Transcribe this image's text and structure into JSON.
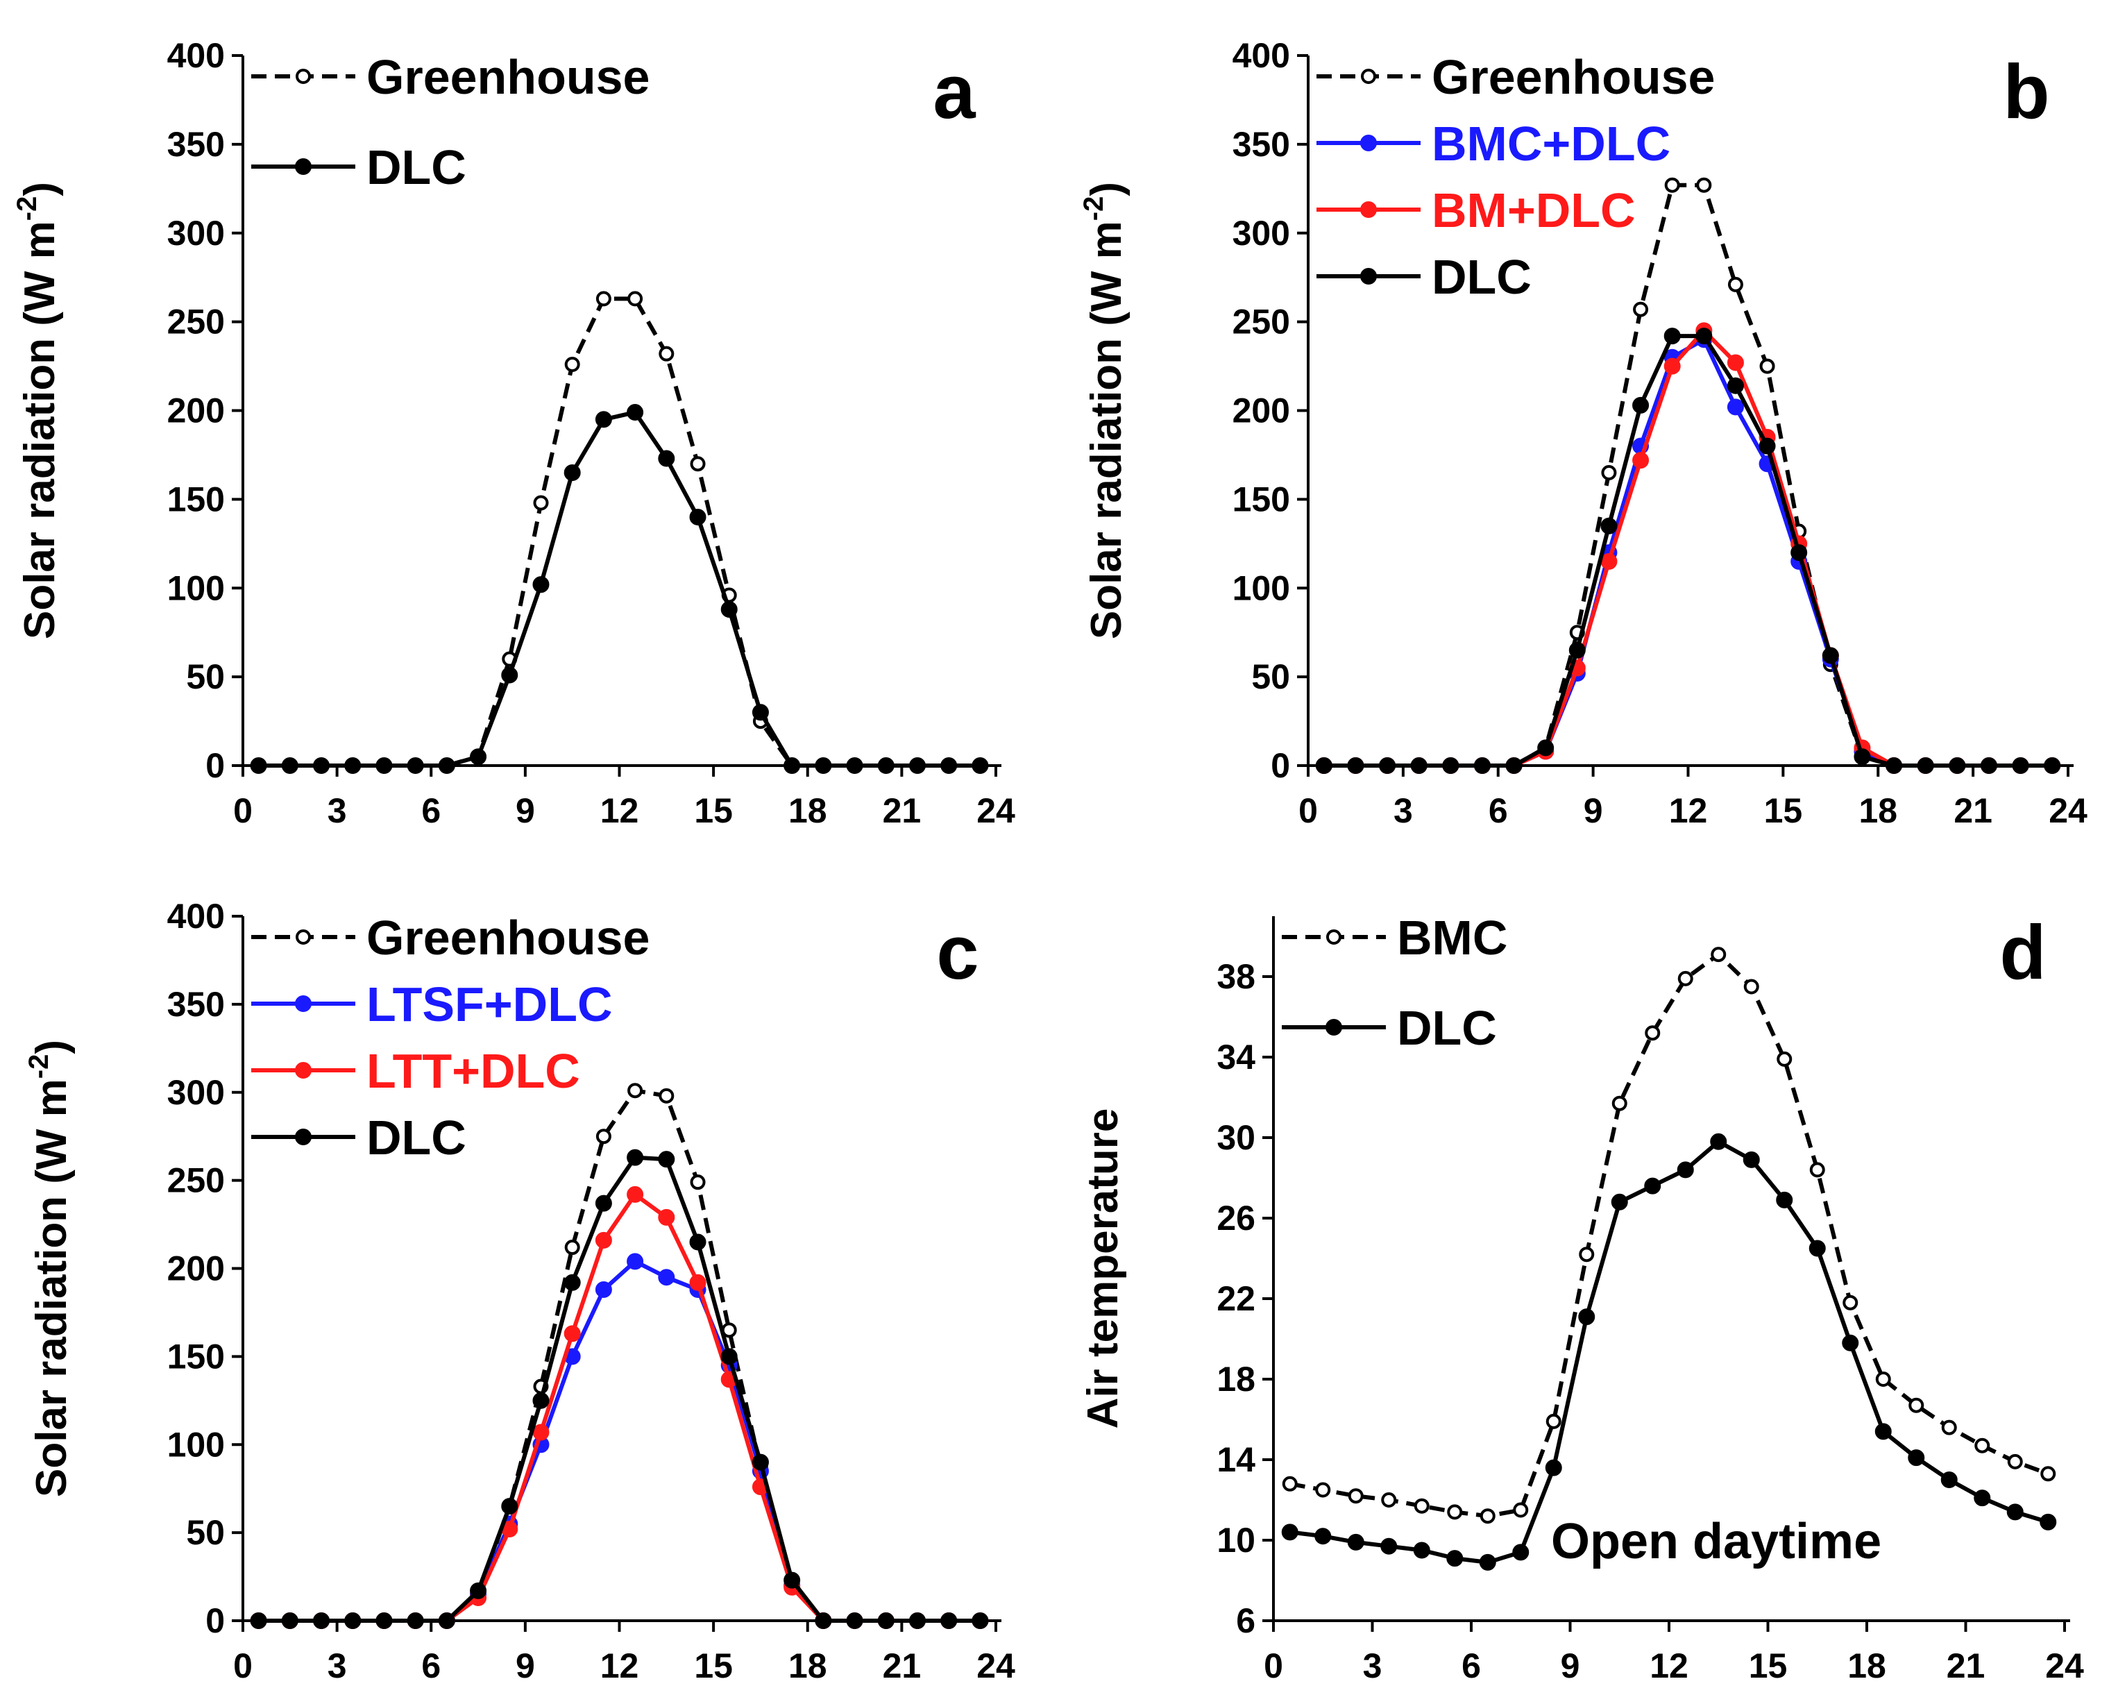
{
  "chart_data": [
    {
      "type": "line",
      "panel": "a",
      "ylabel_main": "Solar radiation (W m",
      "ylabel_sup": "-2",
      "ylabel_tail": ")",
      "xlim": [
        0,
        24
      ],
      "ylim": [
        0,
        400
      ],
      "xticks": [
        "0",
        "3",
        "6",
        "9",
        "12",
        "15",
        "18",
        "21",
        "24"
      ],
      "yticks": [
        "0",
        "50",
        "100",
        "150",
        "200",
        "250",
        "300",
        "350",
        "400"
      ],
      "legend_position": "top-left",
      "series": [
        {
          "name": "Greenhouse",
          "color": "#000000",
          "style": "dashed",
          "marker": "open",
          "x": [
            0.5,
            1.5,
            2.5,
            3.5,
            4.5,
            5.5,
            6.5,
            7.5,
            8.5,
            9.5,
            10.5,
            11.5,
            12.5,
            13.5,
            14.5,
            15.5,
            16.5,
            17.5,
            18.5,
            19.5,
            20.5,
            21.5,
            22.5,
            23.5
          ],
          "values": [
            0,
            0,
            0,
            0,
            0,
            0,
            0,
            5,
            60,
            148,
            226,
            263,
            263,
            232,
            170,
            96,
            25,
            0,
            0,
            0,
            0,
            0,
            0,
            0
          ]
        },
        {
          "name": "DLC",
          "color": "#000000",
          "style": "solid",
          "marker": "filled",
          "x": [
            0.5,
            1.5,
            2.5,
            3.5,
            4.5,
            5.5,
            6.5,
            7.5,
            8.5,
            9.5,
            10.5,
            11.5,
            12.5,
            13.5,
            14.5,
            15.5,
            16.5,
            17.5,
            18.5,
            19.5,
            20.5,
            21.5,
            22.5,
            23.5
          ],
          "values": [
            0,
            0,
            0,
            0,
            0,
            0,
            0,
            5,
            51,
            102,
            165,
            195,
            199,
            173,
            140,
            88,
            30,
            0,
            0,
            0,
            0,
            0,
            0,
            0
          ]
        }
      ]
    },
    {
      "type": "line",
      "panel": "b",
      "ylabel_main": "Solar radiation (W m",
      "ylabel_sup": "-2",
      "ylabel_tail": ")",
      "xlim": [
        0,
        24
      ],
      "ylim": [
        0,
        400
      ],
      "xticks": [
        "0",
        "3",
        "6",
        "9",
        "12",
        "15",
        "18",
        "21",
        "24"
      ],
      "yticks": [
        "0",
        "50",
        "100",
        "150",
        "200",
        "250",
        "300",
        "350",
        "400"
      ],
      "legend_position": "top-left",
      "series": [
        {
          "name": "Greenhouse",
          "color": "#000000",
          "style": "dashed",
          "marker": "open",
          "x": [
            0.5,
            1.5,
            2.5,
            3.5,
            4.5,
            5.5,
            6.5,
            7.5,
            8.5,
            9.5,
            10.5,
            11.5,
            12.5,
            13.5,
            14.5,
            15.5,
            16.5,
            17.5,
            18.5,
            19.5,
            20.5,
            21.5,
            22.5,
            23.5
          ],
          "values": [
            0,
            0,
            0,
            0,
            0,
            0,
            0,
            10,
            75,
            165,
            257,
            327,
            327,
            271,
            225,
            132,
            57,
            5,
            0,
            0,
            0,
            0,
            0,
            0
          ]
        },
        {
          "name": "BMC+DLC",
          "color": "#1a1aff",
          "style": "solid",
          "marker": "filled",
          "x": [
            0.5,
            1.5,
            2.5,
            3.5,
            4.5,
            5.5,
            6.5,
            7.5,
            8.5,
            9.5,
            10.5,
            11.5,
            12.5,
            13.5,
            14.5,
            15.5,
            16.5,
            17.5,
            18.5,
            19.5,
            20.5,
            21.5,
            22.5,
            23.5
          ],
          "values": [
            0,
            0,
            0,
            0,
            0,
            0,
            0,
            8,
            52,
            120,
            180,
            230,
            240,
            202,
            170,
            115,
            60,
            8,
            0,
            0,
            0,
            0,
            0,
            0
          ]
        },
        {
          "name": "BM+DLC",
          "color": "#ff1a1a",
          "style": "solid",
          "marker": "filled",
          "x": [
            0.5,
            1.5,
            2.5,
            3.5,
            4.5,
            5.5,
            6.5,
            7.5,
            8.5,
            9.5,
            10.5,
            11.5,
            12.5,
            13.5,
            14.5,
            15.5,
            16.5,
            17.5,
            18.5,
            19.5,
            20.5,
            21.5,
            22.5,
            23.5
          ],
          "values": [
            0,
            0,
            0,
            0,
            0,
            0,
            0,
            8,
            55,
            115,
            172,
            225,
            245,
            227,
            185,
            125,
            62,
            10,
            0,
            0,
            0,
            0,
            0,
            0
          ]
        },
        {
          "name": "DLC",
          "color": "#000000",
          "style": "solid",
          "marker": "filled",
          "x": [
            0.5,
            1.5,
            2.5,
            3.5,
            4.5,
            5.5,
            6.5,
            7.5,
            8.5,
            9.5,
            10.5,
            11.5,
            12.5,
            13.5,
            14.5,
            15.5,
            16.5,
            17.5,
            18.5,
            19.5,
            20.5,
            21.5,
            22.5,
            23.5
          ],
          "values": [
            0,
            0,
            0,
            0,
            0,
            0,
            0,
            10,
            65,
            135,
            203,
            242,
            242,
            214,
            180,
            120,
            62,
            5,
            0,
            0,
            0,
            0,
            0,
            0
          ]
        }
      ]
    },
    {
      "type": "line",
      "panel": "c",
      "ylabel_main": "Solar radiation (W m",
      "ylabel_sup": "-2",
      "ylabel_tail": ")",
      "xlim": [
        0,
        24
      ],
      "ylim": [
        0,
        400
      ],
      "xticks": [
        "0",
        "3",
        "6",
        "9",
        "12",
        "15",
        "18",
        "21",
        "24"
      ],
      "yticks": [
        "0",
        "50",
        "100",
        "150",
        "200",
        "250",
        "300",
        "350",
        "400"
      ],
      "legend_position": "top-left",
      "series": [
        {
          "name": "Greenhouse",
          "color": "#000000",
          "style": "dashed",
          "marker": "open",
          "x": [
            0.5,
            1.5,
            2.5,
            3.5,
            4.5,
            5.5,
            6.5,
            7.5,
            8.5,
            9.5,
            10.5,
            11.5,
            12.5,
            13.5,
            14.5,
            15.5,
            16.5,
            17.5,
            18.5,
            19.5,
            20.5,
            21.5,
            22.5,
            23.5
          ],
          "values": [
            0,
            0,
            0,
            0,
            0,
            0,
            0,
            15,
            65,
            133,
            212,
            275,
            301,
            298,
            249,
            165,
            87,
            20,
            0,
            0,
            0,
            0,
            0,
            0
          ]
        },
        {
          "name": "LTSF+DLC",
          "color": "#1a1aff",
          "style": "solid",
          "marker": "filled",
          "x": [
            0.5,
            1.5,
            2.5,
            3.5,
            4.5,
            5.5,
            6.5,
            7.5,
            8.5,
            9.5,
            10.5,
            11.5,
            12.5,
            13.5,
            14.5,
            15.5,
            16.5,
            17.5,
            18.5,
            19.5,
            20.5,
            21.5,
            22.5,
            23.5
          ],
          "values": [
            0,
            0,
            0,
            0,
            0,
            0,
            0,
            15,
            55,
            100,
            150,
            188,
            204,
            195,
            188,
            145,
            85,
            20,
            0,
            0,
            0,
            0,
            0,
            0
          ]
        },
        {
          "name": "LTT+DLC",
          "color": "#ff1a1a",
          "style": "solid",
          "marker": "filled",
          "x": [
            0.5,
            1.5,
            2.5,
            3.5,
            4.5,
            5.5,
            6.5,
            7.5,
            8.5,
            9.5,
            10.5,
            11.5,
            12.5,
            13.5,
            14.5,
            15.5,
            16.5,
            17.5,
            18.5,
            19.5,
            20.5,
            21.5,
            22.5,
            23.5
          ],
          "values": [
            0,
            0,
            0,
            0,
            0,
            0,
            0,
            13,
            52,
            107,
            163,
            216,
            242,
            229,
            192,
            137,
            76,
            19,
            0,
            0,
            0,
            0,
            0,
            0
          ]
        },
        {
          "name": "DLC",
          "color": "#000000",
          "style": "solid",
          "marker": "filled",
          "x": [
            0.5,
            1.5,
            2.5,
            3.5,
            4.5,
            5.5,
            6.5,
            7.5,
            8.5,
            9.5,
            10.5,
            11.5,
            12.5,
            13.5,
            14.5,
            15.5,
            16.5,
            17.5,
            18.5,
            19.5,
            20.5,
            21.5,
            22.5,
            23.5
          ],
          "values": [
            0,
            0,
            0,
            0,
            0,
            0,
            0,
            17,
            65,
            125,
            192,
            237,
            263,
            262,
            215,
            150,
            90,
            23,
            0,
            0,
            0,
            0,
            0,
            0
          ]
        }
      ]
    },
    {
      "type": "line",
      "panel": "d",
      "ylabel_main": "Air temperature",
      "ylabel_sup": "",
      "ylabel_tail": "",
      "annotation": "Open daytime",
      "xlim": [
        0,
        24
      ],
      "ylim": [
        6,
        41
      ],
      "xticks": [
        "0",
        "3",
        "6",
        "9",
        "12",
        "15",
        "18",
        "21",
        "24"
      ],
      "yticks": [
        "6",
        "10",
        "14",
        "18",
        "22",
        "26",
        "30",
        "34",
        "38"
      ],
      "legend_position": "top-left",
      "series": [
        {
          "name": "BMC",
          "color": "#000000",
          "style": "dashed",
          "marker": "open",
          "x": [
            0.5,
            1.5,
            2.5,
            3.5,
            4.5,
            5.5,
            6.5,
            7.5,
            8.5,
            9.5,
            10.5,
            11.5,
            12.5,
            13.5,
            14.5,
            15.5,
            16.5,
            17.5,
            18.5,
            19.5,
            20.5,
            21.5,
            22.5,
            23.5
          ],
          "values": [
            12.8,
            12.5,
            12.2,
            12.0,
            11.7,
            11.4,
            11.2,
            11.5,
            15.9,
            24.2,
            31.7,
            35.2,
            37.9,
            39.1,
            37.5,
            33.9,
            28.4,
            21.8,
            18.0,
            16.7,
            15.6,
            14.7,
            13.9,
            13.3
          ]
        },
        {
          "name": "DLC",
          "color": "#000000",
          "style": "solid",
          "marker": "filled",
          "x": [
            0.5,
            1.5,
            2.5,
            3.5,
            4.5,
            5.5,
            6.5,
            7.5,
            8.5,
            9.5,
            10.5,
            11.5,
            12.5,
            13.5,
            14.5,
            15.5,
            16.5,
            17.5,
            18.5,
            19.5,
            20.5,
            21.5,
            22.5,
            23.5
          ],
          "values": [
            10.4,
            10.2,
            9.9,
            9.7,
            9.5,
            9.1,
            8.9,
            9.4,
            13.6,
            21.1,
            26.8,
            27.6,
            28.4,
            29.8,
            28.9,
            26.9,
            24.5,
            19.8,
            15.4,
            14.1,
            13.0,
            12.1,
            11.4,
            10.9
          ]
        }
      ]
    }
  ]
}
